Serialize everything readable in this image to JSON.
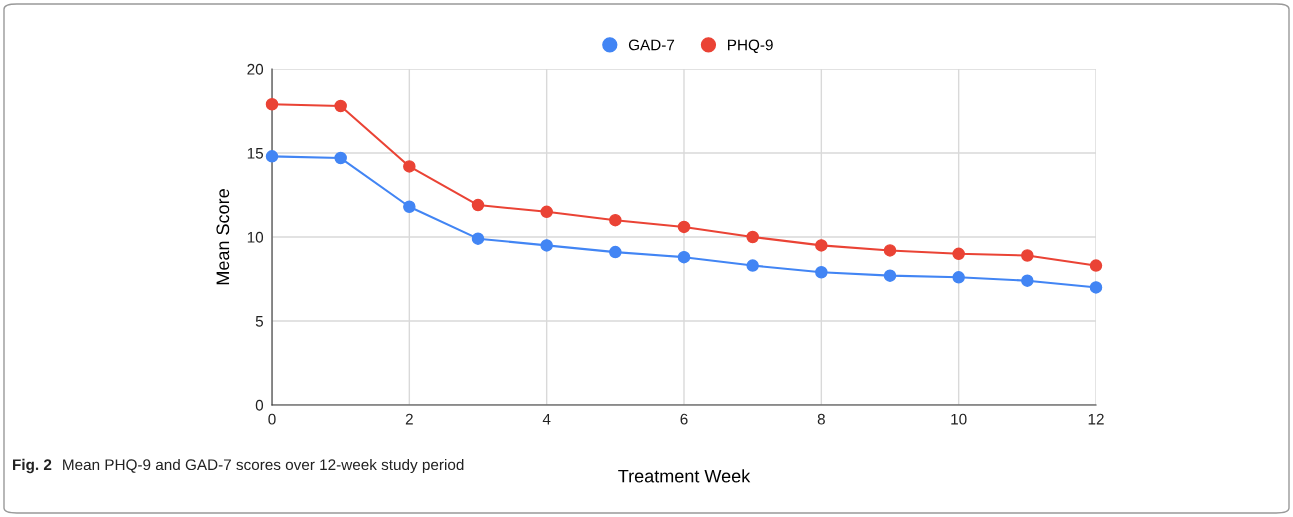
{
  "chart_data": {
    "type": "line",
    "xlabel": "Treatment Week",
    "ylabel": "Mean Score",
    "x": [
      0,
      1,
      2,
      3,
      4,
      5,
      6,
      7,
      8,
      9,
      10,
      11,
      12
    ],
    "series": [
      {
        "name": "GAD-7",
        "color": "#4285f4",
        "values": [
          14.8,
          14.7,
          11.8,
          9.9,
          9.5,
          9.1,
          8.8,
          8.3,
          7.9,
          7.7,
          7.6,
          7.4,
          7.0
        ]
      },
      {
        "name": "PHQ-9",
        "color": "#ea4335",
        "values": [
          17.9,
          17.8,
          14.2,
          11.9,
          11.5,
          11.0,
          10.6,
          10.0,
          9.5,
          9.2,
          9.0,
          8.9,
          8.3
        ]
      }
    ],
    "xlim": [
      0,
      12
    ],
    "xticks": [
      0,
      2,
      4,
      6,
      8,
      10,
      12
    ],
    "ylim": [
      0,
      20
    ],
    "yticks": [
      0,
      5,
      10,
      15,
      20
    ],
    "grid": true,
    "legend": "top",
    "marker": "circle",
    "line_style": "solid",
    "annotations": [
      "Fig. 2",
      "Mean PHQ-9 and GAD-7 scores over 12-week study period"
    ]
  }
}
